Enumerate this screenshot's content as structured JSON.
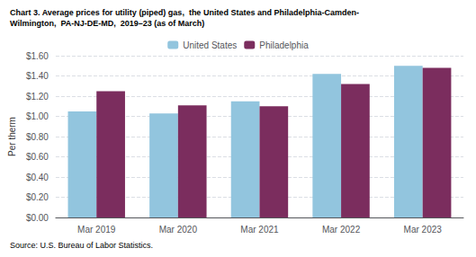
{
  "chart_data": {
    "type": "bar",
    "title": "Chart 3. Average prices for utility (piped) gas,  the United States and Philadelphia-Camden-",
    "subtitle": "Wilmington,  PA-NJ-DE-MD,  2019–23 (as of March)",
    "ylabel": "Per therm",
    "annotations": [
      "Source: U.S. Bureau of Labor Statistics."
    ],
    "categories": [
      "Mar 2019",
      "Mar 2020",
      "Mar 2021",
      "Mar 2022",
      "Mar 2023"
    ],
    "series": [
      {
        "name": "United States",
        "color": "#92C5DE",
        "values": [
          1.05,
          1.03,
          1.15,
          1.42,
          1.5
        ]
      },
      {
        "name": "Philadelphia",
        "color": "#7B2D5E",
        "values": [
          1.25,
          1.11,
          1.1,
          1.32,
          1.48
        ]
      }
    ],
    "ylim": [
      0,
      1.6
    ],
    "yticks": [
      {
        "value": 0.0,
        "label": "$0.00"
      },
      {
        "value": 0.2,
        "label": "$0.20"
      },
      {
        "value": 0.4,
        "label": "$0.40"
      },
      {
        "value": 0.6,
        "label": "$0.60"
      },
      {
        "value": 0.8,
        "label": "$0.80"
      },
      {
        "value": 1.0,
        "label": "$1.00"
      },
      {
        "value": 1.2,
        "label": "$1.20"
      },
      {
        "value": 1.4,
        "label": "$1.40"
      },
      {
        "value": 1.6,
        "label": "$1.60"
      }
    ],
    "grid": true,
    "legend": "top"
  }
}
